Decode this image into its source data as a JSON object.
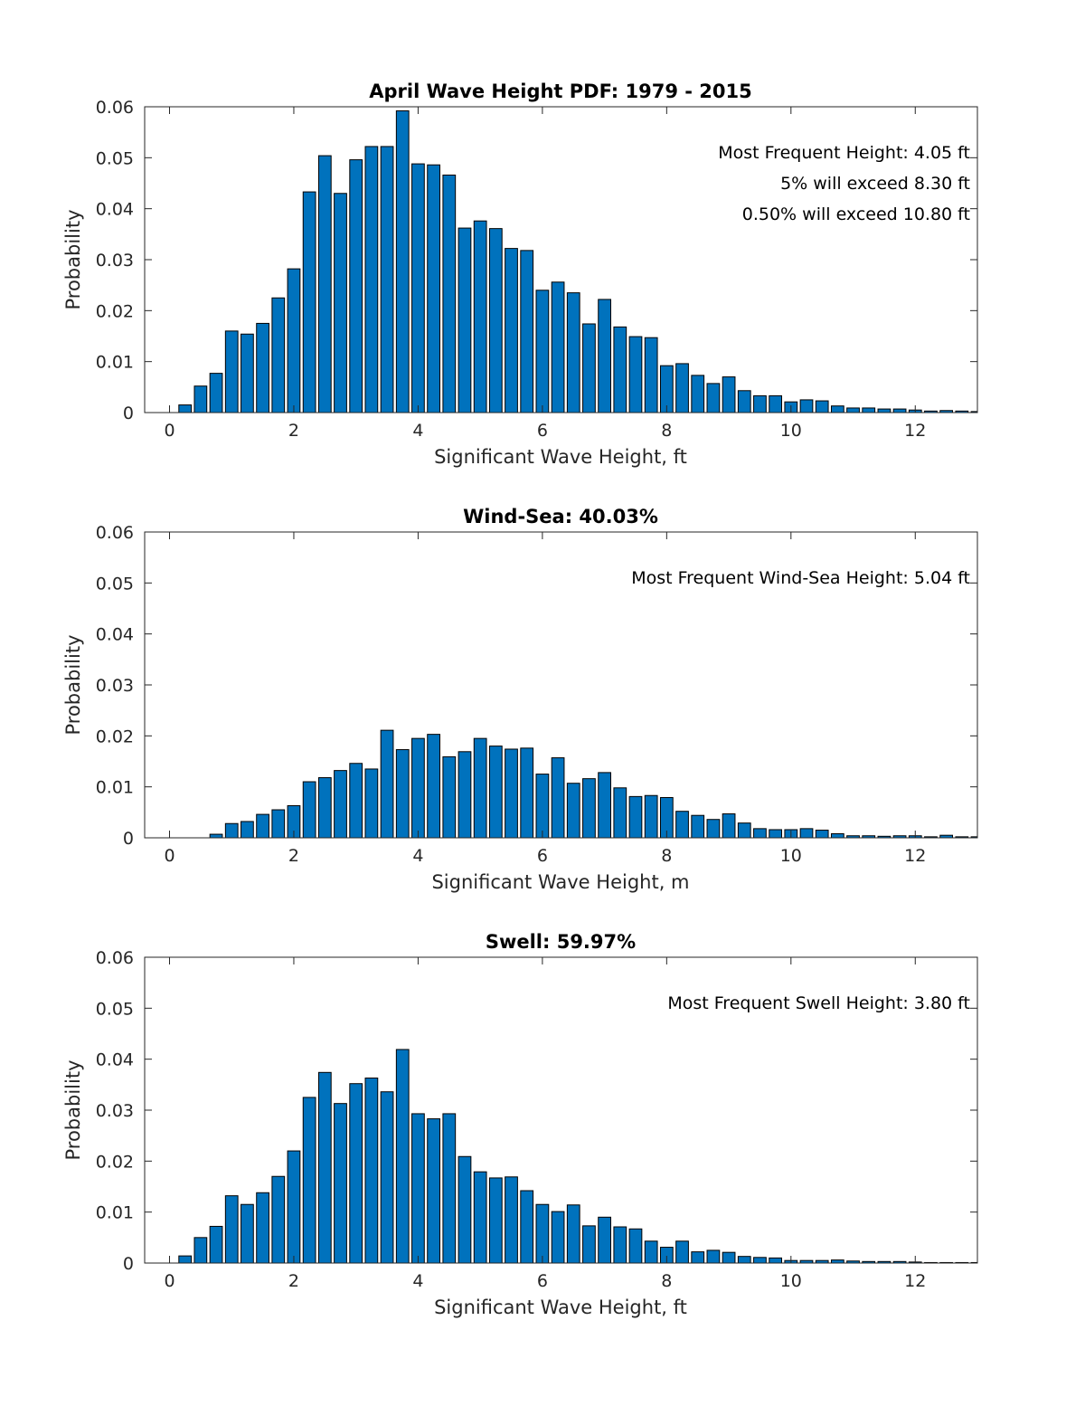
{
  "chart_data": [
    {
      "type": "bar",
      "title": "April Wave Height PDF: 1979 - 2015",
      "xlabel": "Significant Wave Height, ft",
      "ylabel": "Probability",
      "xlim": [
        -0.4,
        13
      ],
      "ylim": [
        0,
        0.06
      ],
      "xticks": [
        0,
        2,
        4,
        6,
        8,
        10,
        12
      ],
      "xtick_labels": [
        "0",
        "2",
        "4",
        "6",
        "8",
        "10",
        "12"
      ],
      "yticks": [
        0,
        0.01,
        0.02,
        0.03,
        0.04,
        0.05,
        0.06
      ],
      "ytick_labels": [
        "0",
        "0.01",
        "0.02",
        "0.03",
        "0.04",
        "0.05",
        "0.06"
      ],
      "bin_width": 0.25,
      "x": [
        0.25,
        0.5,
        0.75,
        1.0,
        1.25,
        1.5,
        1.75,
        2.0,
        2.25,
        2.5,
        2.75,
        3.0,
        3.25,
        3.5,
        3.75,
        4.0,
        4.25,
        4.5,
        4.75,
        5.0,
        5.25,
        5.5,
        5.75,
        6.0,
        6.25,
        6.5,
        6.75,
        7.0,
        7.25,
        7.5,
        7.75,
        8.0,
        8.25,
        8.5,
        8.75,
        9.0,
        9.25,
        9.5,
        9.75,
        10.0,
        10.25,
        10.5,
        10.75,
        11.0,
        11.25,
        11.5,
        11.75,
        12.0,
        12.25,
        12.5,
        12.75,
        13.0
      ],
      "values": [
        0.0015,
        0.0052,
        0.0077,
        0.016,
        0.0154,
        0.0175,
        0.0225,
        0.0282,
        0.0433,
        0.0504,
        0.043,
        0.0496,
        0.0522,
        0.0522,
        0.0592,
        0.0488,
        0.0486,
        0.0466,
        0.0362,
        0.0376,
        0.0361,
        0.0322,
        0.0318,
        0.024,
        0.0256,
        0.0235,
        0.0174,
        0.0222,
        0.0168,
        0.0149,
        0.0147,
        0.0092,
        0.0096,
        0.0073,
        0.0057,
        0.007,
        0.0043,
        0.0033,
        0.0033,
        0.0021,
        0.0025,
        0.0023,
        0.0013,
        0.0009,
        0.0009,
        0.0007,
        0.0007,
        0.0005,
        0.0003,
        0.0004,
        0.0003,
        0.0002
      ],
      "annotations": [
        "Most Frequent Height: 4.05 ft",
        "5% will exceed 8.30 ft",
        "0.50% will exceed 10.80 ft"
      ]
    },
    {
      "type": "bar",
      "title": "Wind-Sea: 40.03%",
      "xlabel": "Significant Wave Height, m",
      "ylabel": "Probability",
      "xlim": [
        -0.4,
        13
      ],
      "ylim": [
        0,
        0.06
      ],
      "xticks": [
        0,
        2,
        4,
        6,
        8,
        10,
        12
      ],
      "xtick_labels": [
        "0",
        "2",
        "4",
        "6",
        "8",
        "10",
        "12"
      ],
      "yticks": [
        0,
        0.01,
        0.02,
        0.03,
        0.04,
        0.05,
        0.06
      ],
      "ytick_labels": [
        "0",
        "0.01",
        "0.02",
        "0.03",
        "0.04",
        "0.05",
        "0.06"
      ],
      "bin_width": 0.25,
      "x": [
        0.75,
        1.0,
        1.25,
        1.5,
        1.75,
        2.0,
        2.25,
        2.5,
        2.75,
        3.0,
        3.25,
        3.5,
        3.75,
        4.0,
        4.25,
        4.5,
        4.75,
        5.0,
        5.25,
        5.5,
        5.75,
        6.0,
        6.25,
        6.5,
        6.75,
        7.0,
        7.25,
        7.5,
        7.75,
        8.0,
        8.25,
        8.5,
        8.75,
        9.0,
        9.25,
        9.5,
        9.75,
        10.0,
        10.25,
        10.5,
        10.75,
        11.0,
        11.25,
        11.5,
        11.75,
        12.0,
        12.25,
        12.5,
        12.75,
        13.0
      ],
      "values": [
        0.0007,
        0.0028,
        0.0032,
        0.0046,
        0.0055,
        0.0063,
        0.011,
        0.0118,
        0.0132,
        0.0146,
        0.0135,
        0.0211,
        0.0173,
        0.0195,
        0.0203,
        0.0159,
        0.0169,
        0.0195,
        0.018,
        0.0174,
        0.0176,
        0.0125,
        0.0157,
        0.0107,
        0.0116,
        0.0128,
        0.0098,
        0.0081,
        0.0083,
        0.0079,
        0.0052,
        0.0044,
        0.0036,
        0.0047,
        0.0029,
        0.0018,
        0.0016,
        0.0016,
        0.0018,
        0.0015,
        0.0008,
        0.0004,
        0.0004,
        0.0003,
        0.0004,
        0.0004,
        0.0002,
        0.0005,
        0.0002,
        0.0002
      ],
      "annotations": [
        "Most Frequent Wind-Sea Height: 5.04 ft"
      ]
    },
    {
      "type": "bar",
      "title": "Swell: 59.97%",
      "xlabel": "Significant Wave Height, ft",
      "ylabel": "Probability",
      "xlim": [
        -0.4,
        13
      ],
      "ylim": [
        0,
        0.06
      ],
      "xticks": [
        0,
        2,
        4,
        6,
        8,
        10,
        12
      ],
      "xtick_labels": [
        "0",
        "2",
        "4",
        "6",
        "8",
        "10",
        "12"
      ],
      "yticks": [
        0,
        0.01,
        0.02,
        0.03,
        0.04,
        0.05,
        0.06
      ],
      "ytick_labels": [
        "0",
        "0.01",
        "0.02",
        "0.03",
        "0.04",
        "0.05",
        "0.06"
      ],
      "bin_width": 0.25,
      "x": [
        0.25,
        0.5,
        0.75,
        1.0,
        1.25,
        1.5,
        1.75,
        2.0,
        2.25,
        2.5,
        2.75,
        3.0,
        3.25,
        3.5,
        3.75,
        4.0,
        4.25,
        4.5,
        4.75,
        5.0,
        5.25,
        5.5,
        5.75,
        6.0,
        6.25,
        6.5,
        6.75,
        7.0,
        7.25,
        7.5,
        7.75,
        8.0,
        8.25,
        8.5,
        8.75,
        9.0,
        9.25,
        9.5,
        9.75,
        10.0,
        10.25,
        10.5,
        10.75,
        11.0,
        11.25,
        11.5,
        11.75,
        12.0,
        12.25,
        12.5,
        12.75,
        13.0
      ],
      "values": [
        0.0014,
        0.005,
        0.0072,
        0.0132,
        0.0115,
        0.0138,
        0.017,
        0.022,
        0.0325,
        0.0374,
        0.0313,
        0.0352,
        0.0363,
        0.0336,
        0.0419,
        0.0293,
        0.0283,
        0.0293,
        0.0209,
        0.0179,
        0.0167,
        0.0169,
        0.0142,
        0.0115,
        0.0101,
        0.0114,
        0.0073,
        0.009,
        0.0071,
        0.0067,
        0.0043,
        0.0031,
        0.0043,
        0.0022,
        0.0025,
        0.0021,
        0.0013,
        0.0011,
        0.001,
        0.0005,
        0.0005,
        0.0005,
        0.0006,
        0.0004,
        0.0003,
        0.0003,
        0.0003,
        0.0002,
        0.0001,
        0.0001,
        0.0001,
        0.0001
      ],
      "annotations": [
        "Most Frequent Swell Height: 3.80 ft"
      ]
    }
  ]
}
